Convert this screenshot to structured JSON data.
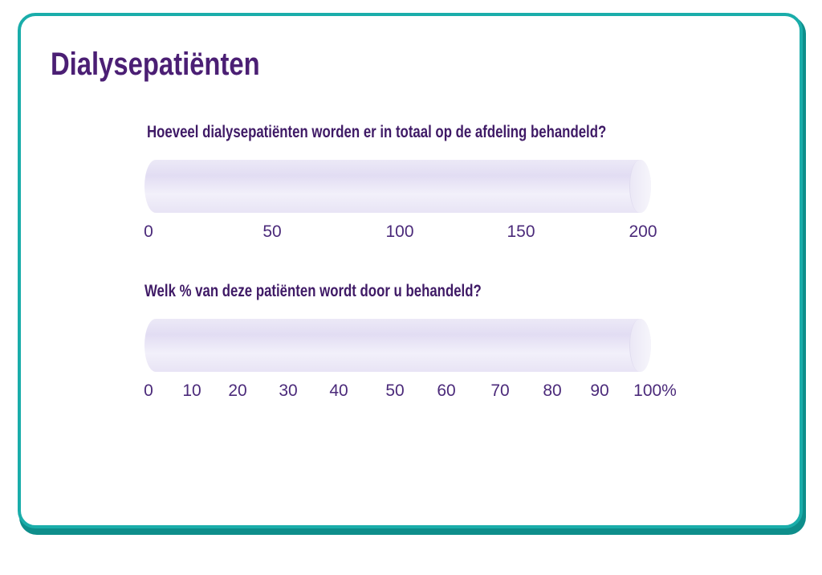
{
  "page": {
    "title": "Dialysepatiënten"
  },
  "questions": [
    {
      "label": "Hoeveel dialysepatiënten worden er in totaal op de afdeling behandeld?",
      "scale": [
        "0",
        "50",
        "100",
        "150",
        "200"
      ]
    },
    {
      "label": "Welk % van deze patiënten wordt door u behandeld?",
      "scale": [
        "0",
        "10",
        "20",
        "30",
        "40",
        "50",
        "60",
        "70",
        "80",
        "90",
        "100%"
      ]
    }
  ],
  "colors": {
    "border": "#1aadaa",
    "title": "#4b1f74",
    "text": "#4b2a7a"
  }
}
